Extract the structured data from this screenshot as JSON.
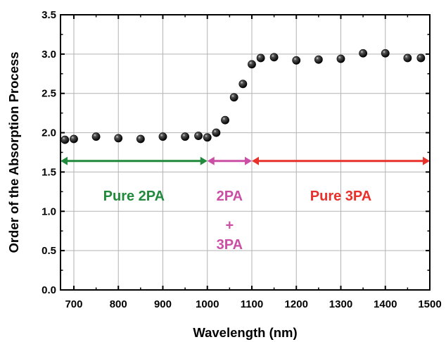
{
  "chart_data": {
    "type": "scatter",
    "xlabel": "Wavelength (nm)",
    "ylabel": "Order of the Absorption Process",
    "xlim": [
      670,
      1500
    ],
    "ylim": [
      0.0,
      3.5
    ],
    "xticks": [
      700,
      800,
      900,
      1000,
      1100,
      1200,
      1300,
      1400,
      1500
    ],
    "xtick_labels": [
      "700",
      "800",
      "900",
      "1000",
      "1100",
      "1200",
      "1300",
      "1400",
      "1500"
    ],
    "yticks": [
      0.0,
      0.5,
      1.0,
      1.5,
      2.0,
      2.5,
      3.0,
      3.5
    ],
    "ytick_labels": [
      "0.0",
      "0.5",
      "1.0",
      "1.5",
      "2.0",
      "2.5",
      "3.0",
      "3.5"
    ],
    "grid": true,
    "marker": "black-sphere",
    "series": [
      {
        "points": [
          [
            680,
            1.91
          ],
          [
            700,
            1.92
          ],
          [
            750,
            1.95
          ],
          [
            800,
            1.93
          ],
          [
            850,
            1.92
          ],
          [
            900,
            1.95
          ],
          [
            950,
            1.95
          ],
          [
            980,
            1.96
          ],
          [
            1000,
            1.94
          ],
          [
            1020,
            2.0
          ],
          [
            1040,
            2.16
          ],
          [
            1060,
            2.45
          ],
          [
            1080,
            2.62
          ],
          [
            1100,
            2.87
          ],
          [
            1120,
            2.95
          ],
          [
            1150,
            2.96
          ],
          [
            1200,
            2.92
          ],
          [
            1250,
            2.93
          ],
          [
            1300,
            2.94
          ],
          [
            1350,
            3.01
          ],
          [
            1400,
            3.01
          ],
          [
            1450,
            2.95
          ],
          [
            1480,
            2.95
          ]
        ]
      }
    ],
    "annotations": [
      {
        "kind": "double-arrow",
        "x_from": 670,
        "x_to": 1000,
        "y": 1.64,
        "color": "#218a3c"
      },
      {
        "kind": "double-arrow",
        "x_from": 1000,
        "x_to": 1100,
        "y": 1.64,
        "color": "#cc4fa6"
      },
      {
        "kind": "double-arrow",
        "x_from": 1100,
        "x_to": 1500,
        "y": 1.64,
        "color": "#e8312b"
      }
    ],
    "regions": [
      {
        "lines": [
          "Pure 2PA"
        ],
        "x": 835,
        "y": 1.2,
        "color": "#218a3c"
      },
      {
        "lines": [
          "2PA",
          "+",
          "3PA"
        ],
        "x": 1050,
        "y": 1.2,
        "y2": 0.83,
        "y3": 0.58,
        "color": "#cc4fa6"
      },
      {
        "lines": [
          "Pure 3PA"
        ],
        "x": 1300,
        "y": 1.2,
        "color": "#e8312b"
      }
    ]
  }
}
